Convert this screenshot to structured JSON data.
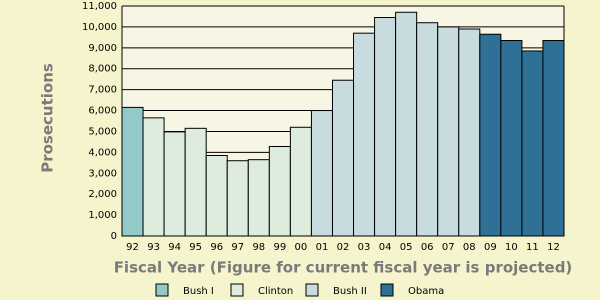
{
  "chart_data": {
    "type": "bar",
    "categories": [
      "92",
      "93",
      "94",
      "95",
      "96",
      "97",
      "98",
      "99",
      "00",
      "01",
      "02",
      "03",
      "04",
      "05",
      "06",
      "07",
      "08",
      "09",
      "10",
      "11",
      "12"
    ],
    "series": [
      {
        "name": "Bush I",
        "color": "#93c9c6",
        "values": [
          6150,
          null,
          null,
          null,
          null,
          null,
          null,
          null,
          null,
          null,
          null,
          null,
          null,
          null,
          null,
          null,
          null,
          null,
          null,
          null,
          null
        ]
      },
      {
        "name": "Clinton",
        "color": "#ddecdc",
        "values": [
          null,
          5650,
          4980,
          5150,
          3850,
          3600,
          3650,
          4280,
          5200,
          null,
          null,
          null,
          null,
          null,
          null,
          null,
          null,
          null,
          null,
          null,
          null
        ]
      },
      {
        "name": "Bush II",
        "color": "#c8dce0",
        "values": [
          null,
          null,
          null,
          null,
          null,
          null,
          null,
          null,
          null,
          6000,
          7450,
          9700,
          10450,
          10700,
          10200,
          10000,
          9900,
          null,
          null,
          null,
          null
        ]
      },
      {
        "name": "Obama",
        "color": "#2f7196",
        "values": [
          null,
          null,
          null,
          null,
          null,
          null,
          null,
          null,
          null,
          null,
          null,
          null,
          null,
          null,
          null,
          null,
          null,
          9650,
          9350,
          8850,
          9350
        ]
      }
    ],
    "ylim": [
      0,
      11000
    ],
    "yticks": [
      0,
      {
        "value": 1000,
        "label": "1,000"
      },
      {
        "value": 2000,
        "label": "2,000"
      },
      {
        "value": 3000,
        "label": "3,000"
      },
      {
        "value": 4000,
        "label": "4,000"
      },
      {
        "value": 5000,
        "label": "5,000"
      },
      {
        "value": 6000,
        "label": "6,000"
      },
      {
        "value": 7000,
        "label": "7,000"
      },
      {
        "value": 8000,
        "label": "8,000"
      },
      {
        "value": 9000,
        "label": "9,000"
      },
      {
        "value": 10000,
        "label": "10,000"
      },
      {
        "value": 11000,
        "label": "11,000"
      }
    ],
    "ylabel": "Prosecutions",
    "xlabel": "Fiscal Year (Figure for current fiscal year is projected)",
    "grid": true
  }
}
